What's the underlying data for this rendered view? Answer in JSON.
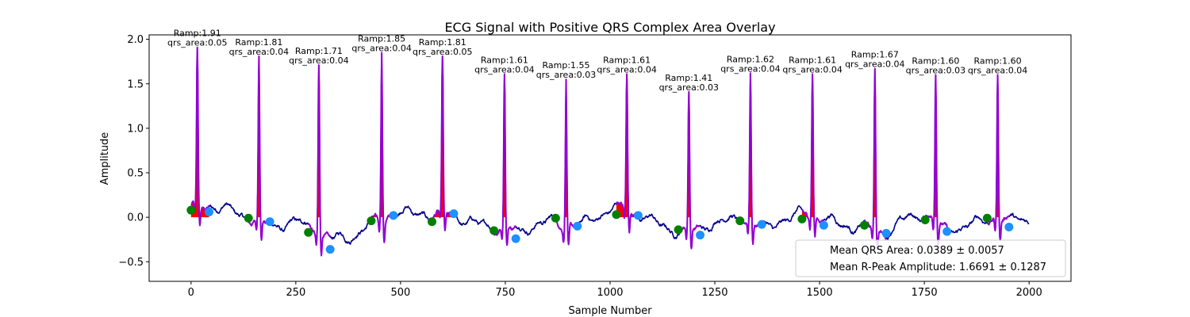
{
  "chart_data": {
    "type": "line",
    "title": "ECG Signal with Positive QRS Complex Area Overlay",
    "xlabel": "Sample Number",
    "ylabel": "Amplitude",
    "xlim": [
      -100,
      2100
    ],
    "ylim": [
      -0.72,
      2.05
    ],
    "xticks": [
      0,
      250,
      500,
      750,
      1000,
      1250,
      1500,
      1750,
      2000
    ],
    "yticks": [
      -0.5,
      0.0,
      0.5,
      1.0,
      1.5,
      2.0
    ],
    "xtick_labels": [
      "0",
      "250",
      "500",
      "750",
      "1000",
      "1250",
      "1500",
      "1750",
      "2000"
    ],
    "ytick_labels": [
      "−0.5",
      "0.0",
      "0.5",
      "1.0",
      "1.5",
      "2.0"
    ],
    "colors": {
      "signal": "#00008b",
      "qrs_segment": "#9400d3",
      "qrs_area": "#ff0000",
      "onset_marker": "#008000",
      "offset_marker": "#1e90ff"
    },
    "beats": [
      {
        "r_x": 15,
        "r_amp": 1.91,
        "qrs_area": 0.05,
        "onset": [
          0,
          0.08
        ],
        "offset": [
          43,
          0.06
        ],
        "label1": "Ramp:1.91",
        "label2": "qrs_area:0.05"
      },
      {
        "r_x": 162,
        "r_amp": 1.81,
        "qrs_area": 0.04,
        "onset": [
          137,
          -0.01
        ],
        "offset": [
          188,
          -0.05
        ],
        "label1": "Ramp:1.81",
        "label2": "qrs_area:0.04"
      },
      {
        "r_x": 305,
        "r_amp": 1.71,
        "qrs_area": 0.04,
        "onset": [
          280,
          -0.17
        ],
        "offset": [
          332,
          -0.36
        ],
        "label1": "Ramp:1.71",
        "label2": "qrs_area:0.04"
      },
      {
        "r_x": 455,
        "r_amp": 1.85,
        "qrs_area": 0.04,
        "onset": [
          430,
          -0.04
        ],
        "offset": [
          483,
          0.02
        ],
        "label1": "Ramp:1.85",
        "label2": "qrs_area:0.04"
      },
      {
        "r_x": 600,
        "r_amp": 1.81,
        "qrs_area": 0.05,
        "onset": [
          575,
          -0.05
        ],
        "offset": [
          627,
          0.04
        ],
        "label1": "Ramp:1.81",
        "label2": "qrs_area:0.05"
      },
      {
        "r_x": 748,
        "r_amp": 1.61,
        "qrs_area": 0.04,
        "onset": [
          723,
          -0.15
        ],
        "offset": [
          775,
          -0.24
        ],
        "label1": "Ramp:1.61",
        "label2": "qrs_area:0.04"
      },
      {
        "r_x": 895,
        "r_amp": 1.55,
        "qrs_area": 0.03,
        "onset": [
          870,
          -0.01
        ],
        "offset": [
          922,
          -0.1
        ],
        "label1": "Ramp:1.55",
        "label2": "qrs_area:0.03"
      },
      {
        "r_x": 1040,
        "r_amp": 1.61,
        "qrs_area": 0.04,
        "onset": [
          1015,
          0.03
        ],
        "offset": [
          1067,
          0.02
        ],
        "label1": "Ramp:1.61",
        "label2": "qrs_area:0.04"
      },
      {
        "r_x": 1188,
        "r_amp": 1.41,
        "qrs_area": 0.03,
        "onset": [
          1163,
          -0.14
        ],
        "offset": [
          1215,
          -0.2
        ],
        "label1": "Ramp:1.41",
        "label2": "qrs_area:0.03"
      },
      {
        "r_x": 1335,
        "r_amp": 1.62,
        "qrs_area": 0.04,
        "onset": [
          1310,
          -0.04
        ],
        "offset": [
          1362,
          -0.08
        ],
        "label1": "Ramp:1.62",
        "label2": "qrs_area:0.04"
      },
      {
        "r_x": 1483,
        "r_amp": 1.61,
        "qrs_area": 0.04,
        "onset": [
          1458,
          -0.02
        ],
        "offset": [
          1510,
          -0.09
        ],
        "label1": "Ramp:1.61",
        "label2": "qrs_area:0.04"
      },
      {
        "r_x": 1632,
        "r_amp": 1.67,
        "qrs_area": 0.04,
        "onset": [
          1607,
          -0.09
        ],
        "offset": [
          1659,
          -0.18
        ],
        "label1": "Ramp:1.67",
        "label2": "qrs_area:0.04"
      },
      {
        "r_x": 1777,
        "r_amp": 1.6,
        "qrs_area": 0.03,
        "onset": [
          1752,
          -0.03
        ],
        "offset": [
          1804,
          -0.16
        ],
        "label1": "Ramp:1.60",
        "label2": "qrs_area:0.03"
      },
      {
        "r_x": 1925,
        "r_amp": 1.6,
        "qrs_area": 0.04,
        "onset": [
          1900,
          -0.01
        ],
        "offset": [
          1952,
          -0.11
        ],
        "label1": "Ramp:1.60",
        "label2": "qrs_area:0.04"
      }
    ],
    "legend": {
      "placement": "lower-right",
      "entries": [
        "Mean QRS Area: 0.0389 ± 0.0057",
        "Mean R-Peak Amplitude: 1.6691 ± 0.1287"
      ]
    },
    "grid": false
  }
}
